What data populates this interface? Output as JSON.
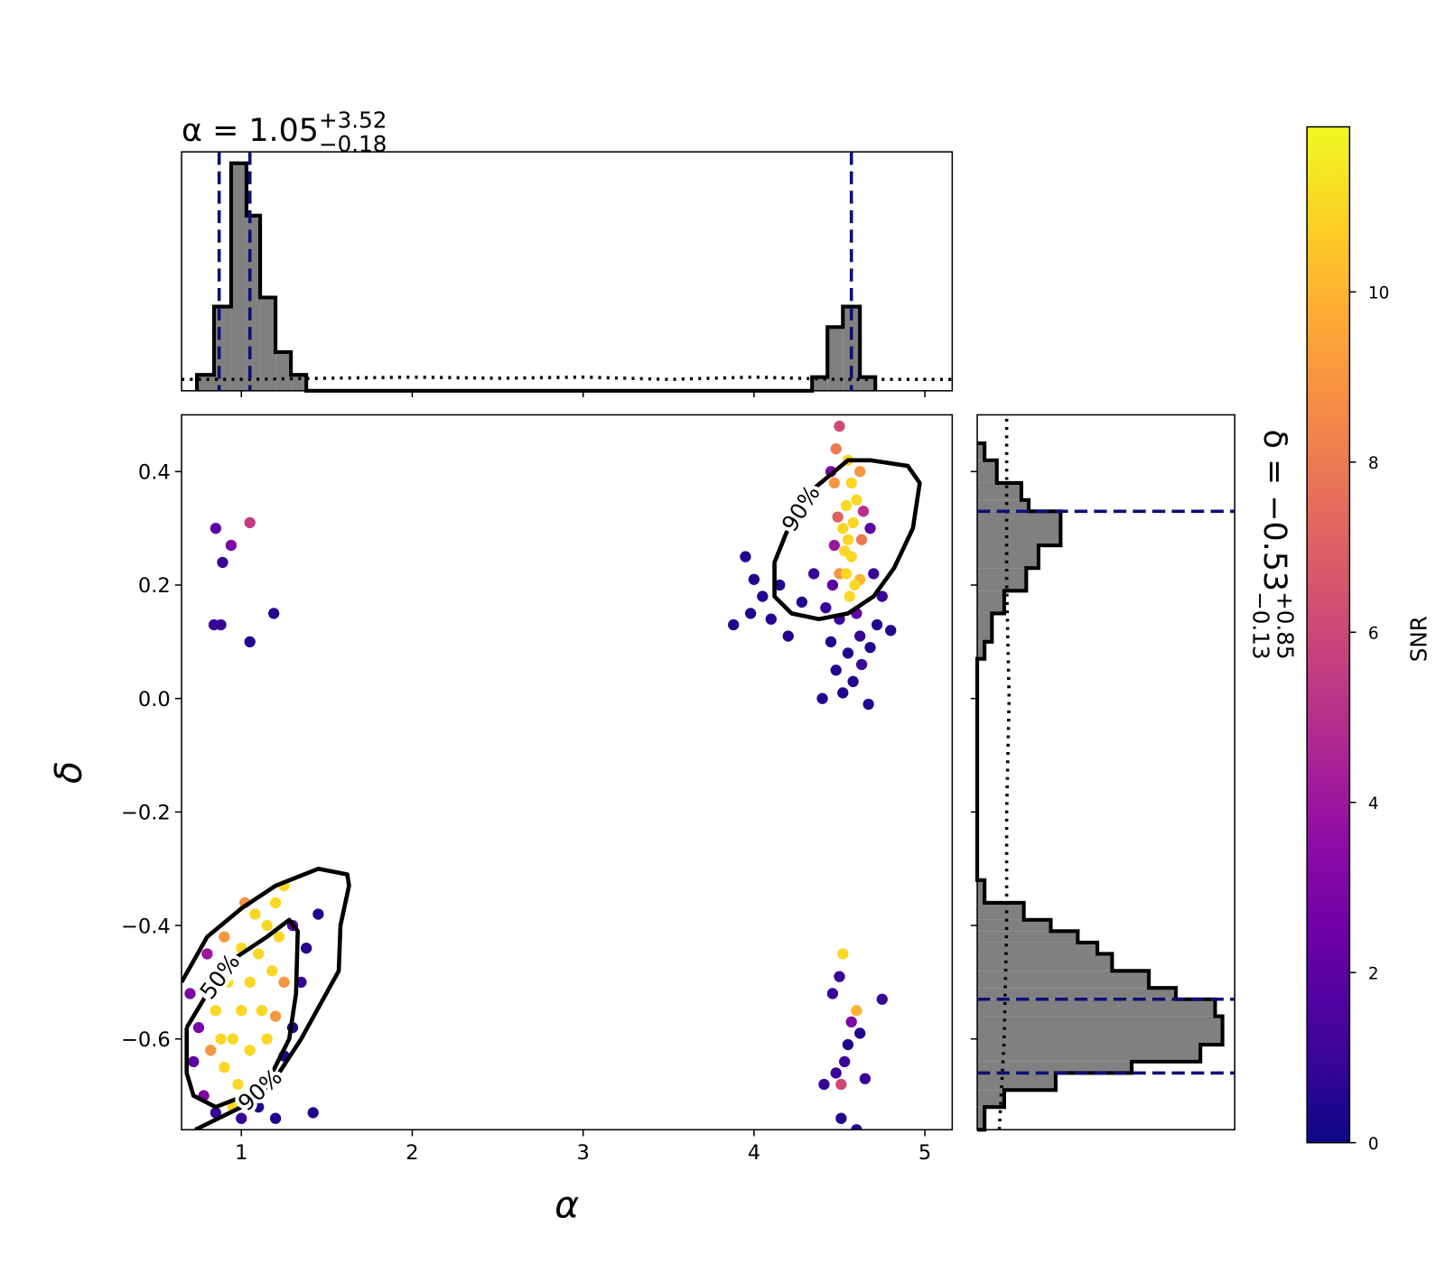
{
  "chart_data": [
    {
      "type": "histogram",
      "title": "α = 1.05",
      "title_sup": "+3.52",
      "title_sub": "−0.18",
      "bins": [
        0.74,
        0.84,
        0.94,
        1.03,
        1.11,
        1.2,
        1.29,
        1.38,
        4.34,
        4.43,
        4.52,
        4.62,
        4.71
      ],
      "counts": [
        0.07,
        0.37,
        1.0,
        0.77,
        0.41,
        0.17,
        0.07,
        0,
        0.06,
        0.28,
        0.37,
        0.06
      ],
      "xlim": [
        0.65,
        5.16
      ],
      "ylim": [
        0,
        1.05
      ],
      "xticks": [
        1,
        2,
        3,
        4,
        5
      ],
      "color": "#808080",
      "edgecolor": "#000000",
      "quantiles": [
        0.87,
        1.05,
        4.57
      ],
      "quantile_color": "#0a1172",
      "prior": {
        "x": [
          0.65,
          1.0,
          1.5,
          2.0,
          2.5,
          3.0,
          3.5,
          4.0,
          4.5,
          5.16
        ],
        "y": [
          0.05,
          0.05,
          0.055,
          0.06,
          0.055,
          0.06,
          0.05,
          0.06,
          0.05,
          0.05
        ]
      }
    },
    {
      "type": "scatter",
      "xlabel": "α",
      "ylabel": "δ",
      "x": [
        0.85,
        0.94,
        1.05,
        0.89,
        0.84,
        0.88,
        1.19,
        1.05,
        4.52,
        4.5,
        4.46,
        4.6,
        4.57,
        4.75,
        4.62,
        4.55,
        4.53,
        4.48,
        4.65,
        4.41,
        4.51,
        4.51,
        4.6,
        3.95,
        4.0,
        4.05,
        3.98,
        4.1,
        4.2,
        3.88,
        4.15,
        4.28,
        4.35,
        4.45,
        4.46,
        4.68,
        4.7,
        4.6,
        4.5,
        4.45,
        4.55,
        4.63,
        4.58,
        4.48,
        4.72,
        4.8,
        4.75,
        4.42,
        4.52,
        4.67,
        4.4,
        4.62,
        4.68,
        4.48,
        4.5,
        4.47,
        4.62,
        4.49,
        4.63,
        4.5,
        4.62,
        4.47,
        4.64,
        4.55,
        4.57,
        4.54,
        4.58,
        4.55,
        4.57,
        4.54,
        4.59,
        4.52,
        4.6,
        4.56,
        4.53,
        0.75,
        0.72,
        0.78,
        0.85,
        1.0,
        1.1,
        1.15,
        1.25,
        1.3,
        1.35,
        1.38,
        1.45,
        1.3,
        1.42,
        1.2,
        0.8,
        0.7,
        0.8,
        0.9,
        1.02,
        1.25,
        1.05,
        0.82,
        1.2,
        0.95,
        1.0,
        1.05,
        1.1,
        1.15,
        1.2,
        0.9,
        0.98,
        1.05,
        1.12,
        1.18,
        0.85,
        0.92,
        1.0,
        1.08,
        1.25,
        0.95,
        1.15,
        1.22,
        0.88
      ],
      "y": [
        0.3,
        0.27,
        0.31,
        0.24,
        0.13,
        0.13,
        0.15,
        0.1,
        -0.45,
        -0.49,
        -0.52,
        -0.55,
        -0.57,
        -0.53,
        -0.59,
        -0.61,
        -0.64,
        -0.66,
        -0.67,
        -0.68,
        -0.68,
        -0.74,
        -0.76,
        0.25,
        0.21,
        0.18,
        0.15,
        0.14,
        0.11,
        0.13,
        0.2,
        0.17,
        0.22,
        0.4,
        0.2,
        0.3,
        0.22,
        0.15,
        0.14,
        0.1,
        0.08,
        0.06,
        0.03,
        0.05,
        0.13,
        0.12,
        0.18,
        0.16,
        0.01,
        -0.01,
        0.0,
        0.11,
        0.09,
        0.44,
        0.48,
        0.38,
        0.4,
        0.32,
        0.28,
        0.22,
        0.21,
        0.27,
        0.33,
        0.42,
        0.38,
        0.34,
        0.31,
        0.28,
        0.25,
        0.22,
        0.2,
        0.3,
        0.35,
        0.18,
        0.26,
        -0.58,
        -0.64,
        -0.7,
        -0.73,
        -0.74,
        -0.72,
        -0.68,
        -0.63,
        -0.58,
        -0.5,
        -0.44,
        -0.38,
        -0.4,
        -0.73,
        -0.74,
        -0.45,
        -0.52,
        -0.5,
        -0.42,
        -0.36,
        -0.5,
        -0.7,
        -0.62,
        -0.56,
        -0.6,
        -0.55,
        -0.5,
        -0.45,
        -0.4,
        -0.36,
        -0.65,
        -0.68,
        -0.62,
        -0.55,
        -0.48,
        -0.55,
        -0.5,
        -0.44,
        -0.38,
        -0.33,
        -0.72,
        -0.6,
        -0.42,
        -0.6
      ],
      "snr": [
        2,
        3,
        5.5,
        1,
        1,
        1,
        0.5,
        0.5,
        11,
        1,
        1,
        10,
        3,
        1,
        0.5,
        0.5,
        1,
        1,
        1,
        1,
        6,
        0.5,
        0.5,
        0.5,
        0.5,
        0.5,
        0.5,
        0.5,
        0.5,
        0.5,
        0.5,
        0.5,
        1,
        3,
        2,
        2,
        1,
        2,
        1,
        0.5,
        0.5,
        1,
        0.5,
        0.5,
        0.5,
        0.5,
        1,
        1,
        0.5,
        0.5,
        0.5,
        1,
        0.5,
        8,
        6,
        9,
        9,
        7,
        8,
        9,
        10,
        4,
        5,
        11,
        11,
        11,
        11,
        11,
        11,
        11,
        11,
        11,
        11,
        11,
        11,
        3,
        2,
        3,
        1,
        1,
        0.5,
        0.5,
        0.5,
        0.5,
        1,
        0.5,
        0.5,
        2,
        0.5,
        0.5,
        4,
        3,
        9,
        9,
        9,
        9,
        9,
        9,
        9,
        11,
        11,
        11,
        11,
        11,
        11,
        11,
        11,
        11,
        11,
        11,
        11,
        11,
        11,
        11,
        11,
        11,
        11,
        11,
        11
      ],
      "xlim": [
        0.65,
        5.16
      ],
      "ylim": [
        -0.76,
        0.5
      ],
      "xticks": [
        1,
        2,
        3,
        4,
        5
      ],
      "yticks": [
        {
          "value": -0.6,
          "label": "−0.6"
        },
        {
          "value": -0.4,
          "label": "−0.4"
        },
        {
          "value": -0.2,
          "label": "−0.2"
        },
        {
          "value": 0,
          "label": "0.0"
        },
        0.2,
        0.4
      ],
      "colormap": "plasma",
      "clim": [
        0,
        11.94
      ],
      "contours": [
        {
          "label": "50%",
          "x": [
            0.68,
            0.8,
            0.95,
            1.15,
            1.28,
            1.33,
            1.32,
            1.28,
            1.18,
            1.02,
            0.85,
            0.72,
            0.68,
            0.68
          ],
          "y": [
            -0.58,
            -0.52,
            -0.46,
            -0.42,
            -0.39,
            -0.41,
            -0.52,
            -0.6,
            -0.66,
            -0.7,
            -0.72,
            -0.7,
            -0.66,
            -0.58
          ]
        },
        {
          "label": "90%",
          "x": [
            0.65,
            0.8,
            1.0,
            1.2,
            1.45,
            1.62,
            1.63,
            1.58,
            1.57,
            1.46,
            1.35,
            1.22,
            1.0,
            0.73
          ],
          "y": [
            -0.5,
            -0.42,
            -0.37,
            -0.33,
            -0.3,
            -0.31,
            -0.33,
            -0.4,
            -0.48,
            -0.54,
            -0.6,
            -0.66,
            -0.72,
            -0.76
          ]
        },
        {
          "label": "90%",
          "x": [
            4.35,
            4.55,
            4.68,
            4.9,
            4.97,
            4.93,
            4.82,
            4.7,
            4.55,
            4.38,
            4.22,
            4.12,
            4.12,
            4.2,
            4.35
          ],
          "y": [
            0.37,
            0.42,
            0.42,
            0.41,
            0.38,
            0.3,
            0.23,
            0.18,
            0.15,
            0.14,
            0.15,
            0.18,
            0.24,
            0.3,
            0.37
          ]
        }
      ]
    },
    {
      "type": "histogram",
      "orientation": "horizontal",
      "title": "δ = −0.53",
      "title_sup": "+0.85",
      "title_sub": "−0.13",
      "bins": [
        -0.76,
        -0.72,
        -0.69,
        -0.66,
        -0.64,
        -0.61,
        -0.56,
        -0.53,
        -0.51,
        -0.48,
        -0.45,
        -0.43,
        -0.41,
        -0.39,
        -0.36,
        -0.32,
        0.07,
        0.1,
        0.15,
        0.19,
        0.23,
        0.27,
        0.33,
        0.35,
        0.38,
        0.42,
        0.45
      ],
      "counts": [
        0.03,
        0.11,
        0.32,
        0.63,
        0.91,
        1.0,
        0.97,
        0.81,
        0.7,
        0.55,
        0.49,
        0.41,
        0.3,
        0.19,
        0.03,
        0,
        0.03,
        0.06,
        0.11,
        0.2,
        0.25,
        0.34,
        0.21,
        0.18,
        0.08,
        0.03
      ],
      "ylim": [
        -0.76,
        0.5
      ],
      "xlim": [
        0,
        1.05
      ],
      "yticks": [
        -0.6,
        -0.4,
        -0.2,
        0,
        0.2,
        0.4
      ],
      "color": "#808080",
      "edgecolor": "#000000",
      "quantiles": [
        -0.66,
        -0.53,
        0.33
      ],
      "quantile_color": "#0a1172",
      "prior": {
        "y": [
          -0.76,
          -0.6,
          -0.4,
          -0.2,
          0,
          0.2,
          0.4,
          0.5
        ],
        "x": [
          0.09,
          0.11,
          0.12,
          0.12,
          0.13,
          0.12,
          0.12,
          0.12
        ]
      }
    },
    {
      "type": "colorbar",
      "label": "SNR",
      "clim": [
        0,
        11.94
      ],
      "ticks": [
        0,
        2,
        4,
        6,
        8,
        10
      ],
      "colormap": "plasma"
    }
  ]
}
